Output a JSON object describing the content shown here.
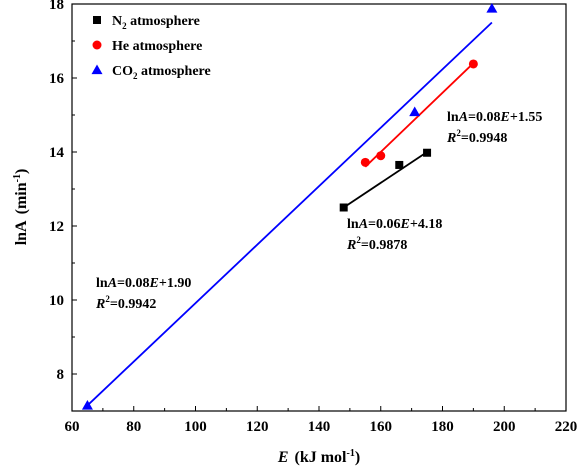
{
  "chart_data": {
    "type": "scatter",
    "xlabel": {
      "var": "E",
      "unit": "(kJ mol",
      "sup": "-1",
      "close": ")"
    },
    "ylabel": {
      "var": "lnA",
      "unit": "(min",
      "sup": "-1",
      "close": ")"
    },
    "xlim": [
      60,
      220
    ],
    "ylim": [
      7,
      18
    ],
    "xticks": [
      60,
      80,
      100,
      120,
      140,
      160,
      180,
      200,
      220
    ],
    "yticks": [
      8,
      10,
      12,
      14,
      16,
      18
    ],
    "legend_position": "top-left",
    "grid": false,
    "series": [
      {
        "name": "N2 atmosphere",
        "legend_base": "N",
        "legend_sub": "2",
        "legend_rest": " atmosphere",
        "marker": "square",
        "color": "#000000",
        "points": [
          [
            148,
            12.5
          ],
          [
            166,
            13.65
          ],
          [
            175,
            13.98
          ]
        ],
        "fit": {
          "slope": 0.06,
          "intercept": 4.18,
          "x": [
            148,
            175
          ],
          "y": [
            12.5,
            14.0
          ]
        },
        "annotation": {
          "eq": "lnA=0.06E+4.18",
          "r2": "R2=0.9878"
        }
      },
      {
        "name": "He atmosphere",
        "legend_base": "He atmosphere",
        "legend_sub": "",
        "legend_rest": "",
        "marker": "circle",
        "color": "#ff0000",
        "points": [
          [
            155,
            13.72
          ],
          [
            160,
            13.9
          ],
          [
            190,
            16.38
          ]
        ],
        "fit": {
          "slope": 0.08,
          "intercept": 1.55,
          "x": [
            155,
            190
          ],
          "y": [
            13.6,
            16.4
          ]
        },
        "annotation": {
          "eq": "lnA=0.08E+1.55",
          "r2": "R2=0.9948"
        }
      },
      {
        "name": "CO2 atmosphere",
        "legend_base": "CO",
        "legend_sub": "2",
        "legend_rest": " atmosphere",
        "marker": "triangle",
        "color": "#0000ff",
        "points": [
          [
            65,
            7.15
          ],
          [
            171,
            15.08
          ],
          [
            196,
            17.88
          ]
        ],
        "fit": {
          "slope": 0.08,
          "intercept": 1.9,
          "x": [
            65,
            196
          ],
          "y": [
            7.15,
            17.5
          ]
        },
        "annotation": {
          "eq": "lnA=0.08E+1.90",
          "r2": "R2=0.9942"
        }
      }
    ]
  }
}
